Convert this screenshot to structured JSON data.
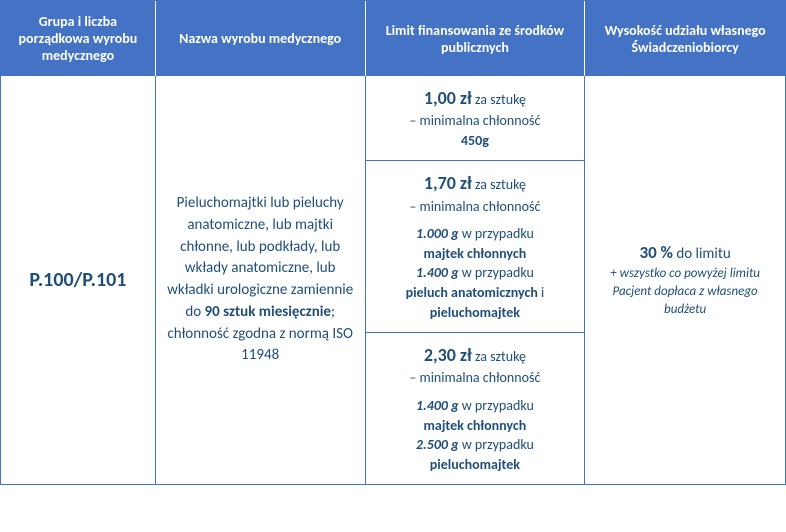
{
  "header": {
    "col1": "Grupa i liczba porządkowa wyrobu medycznego",
    "col2": "Nazwa wyrobu medycznego",
    "col3": "Limit finansowania ze środków publicznych",
    "col4": "Wysokość udziału własnego Świadczeniobiorcy"
  },
  "body": {
    "code": "P.100/P.101",
    "desc_pre": "Pieluchomajtki lub pieluchy anatomiczne, lub majtki chłonne, lub podkłady, lub wkłady anatomiczne, lub wkładki urologiczne zamiennie do ",
    "desc_bold": "90 sztuk miesięcznie",
    "desc_post": "; chłonność zgodna z normą ISO 11948",
    "limits": [
      {
        "price": "1,00 zł",
        "per": " za sztukę",
        "sub": "– minimalna chłonność",
        "g1": "450g"
      },
      {
        "price": "1,70 zł",
        "per": " za sztukę",
        "sub": "– minimalna chłonność",
        "g1": "1.000 g",
        "g1_case": " w przypadku",
        "g1_item": "majtek chłonnych",
        "g2": "1.400 g",
        "g2_case": " w przypadku",
        "g2_item1": "pieluch anatomicznych",
        "g2_and": " i ",
        "g2_item2": "pieluchomajtek"
      },
      {
        "price": "2,30 zł",
        "per": " za sztukę",
        "sub": "– minimalna chłonność",
        "g1": "1.400 g",
        "g1_case": " w przypadku",
        "g1_item": "majtek chłonnych",
        "g2": "2.500 g",
        "g2_case": " w przypadku",
        "g2_item": "pieluchomajtek"
      }
    ],
    "share": {
      "pct": "30 %",
      "pct_post": " do limitu",
      "note": "+ wszystko co powyżej limitu Pacjent dopłaca z własnego budżetu"
    }
  }
}
